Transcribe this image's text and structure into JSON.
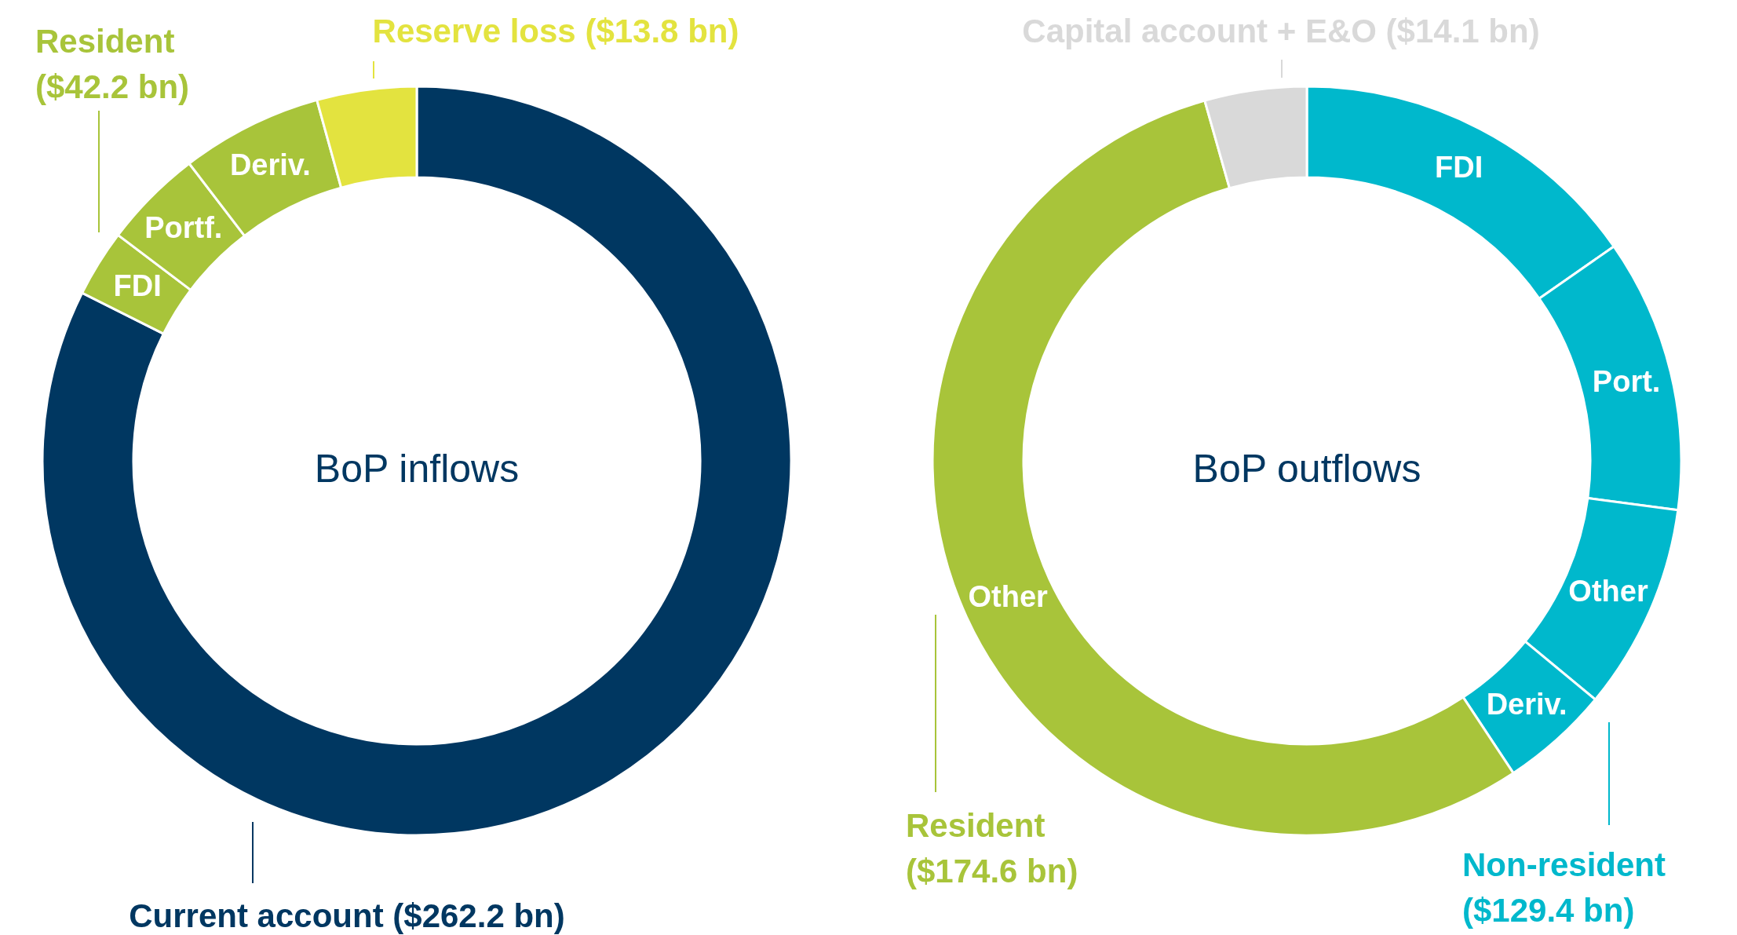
{
  "chart_data": [
    {
      "type": "donut",
      "title": "BoP inflows",
      "categories": [
        null,
        "FDI",
        "Portf.",
        "Deriv.",
        null
      ],
      "values": [
        82.4,
        2.9,
        4.3,
        6.1,
        4.3
      ],
      "colors": [
        "#003761",
        "#a8c43a",
        "#a8c43a",
        "#a8c43a",
        "#e3e33f"
      ],
      "legend": false,
      "annotations": [
        "Reserve loss ($13.8 bn)",
        "Resident\n($42.2 bn)",
        "Current account ($262.2 bn)"
      ]
    },
    {
      "type": "donut",
      "title": "BoP outflows",
      "categories": [
        "FDI",
        "Port.",
        "Other",
        "Deriv.",
        "Other",
        null
      ],
      "values": [
        15.3,
        11.8,
        8.9,
        4.7,
        54.9,
        4.4
      ],
      "colors": [
        "#00b8cc",
        "#00b8cc",
        "#00b8cc",
        "#00b8cc",
        "#a8c43a",
        "#d9d9d9"
      ],
      "legend": false,
      "annotations": [
        "Capital account + E&O ($14.1 bn)",
        "Resident\n($174.6 bn)",
        "Non-resident\n($129.4 bn)"
      ]
    }
  ]
}
